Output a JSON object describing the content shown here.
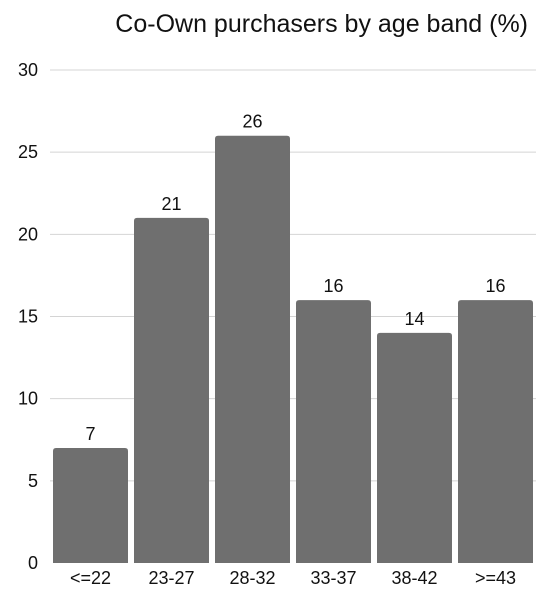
{
  "chart_data": {
    "type": "bar",
    "title": "Co-Own purchasers by age band (%)",
    "xlabel": "",
    "ylabel": "",
    "categories": [
      "<=22",
      "23-27",
      "28-32",
      "33-37",
      "38-42",
      ">=43"
    ],
    "values": [
      7,
      21,
      26,
      16,
      14,
      16
    ],
    "ylim": [
      0,
      30
    ],
    "yticks": [
      0,
      5,
      10,
      15,
      20,
      25,
      30
    ],
    "grid": true,
    "legend": "none",
    "data_labels": true,
    "colors": {
      "bar": "#6f6f6f",
      "grid": "#d4d4d4",
      "text": "#111111"
    }
  }
}
